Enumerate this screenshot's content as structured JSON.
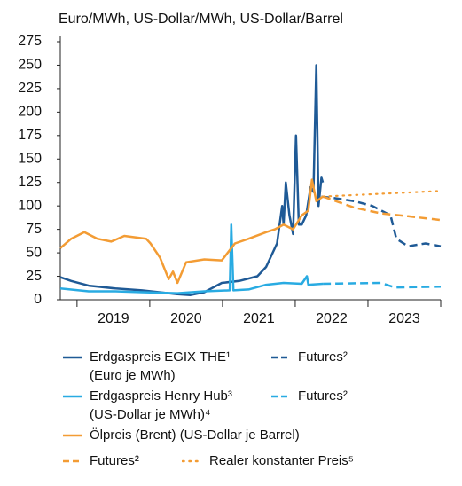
{
  "chart_data": {
    "type": "line",
    "title": "Euro/MWh, US-Dollar/MWh, US-Dollar/Barrel",
    "xlim": [
      2018.77,
      2024.0
    ],
    "xticks": [
      {
        "value": 2019.5,
        "label": "2019"
      },
      {
        "value": 2020.5,
        "label": "2020"
      },
      {
        "value": 2021.5,
        "label": "2021"
      },
      {
        "value": 2022.5,
        "label": "2022"
      },
      {
        "value": 2023.5,
        "label": "2023"
      }
    ],
    "x_minor_ticks": [
      2019,
      2020,
      2021,
      2022,
      2023,
      2024
    ],
    "ylim": [
      0,
      275
    ],
    "yticks": [
      0,
      25,
      50,
      75,
      100,
      125,
      150,
      175,
      200,
      225,
      250,
      275
    ],
    "series": [
      {
        "name": "Erdgaspreis EGIX THE¹ (Euro je MWh)",
        "color": "#1f5a96",
        "style": "solid",
        "x": [
          2018.77,
          2018.92,
          2019.16,
          2019.53,
          2019.89,
          2020.38,
          2020.56,
          2020.75,
          2020.99,
          2021.23,
          2021.48,
          2021.6,
          2021.75,
          2021.82,
          2021.84,
          2021.87,
          2021.92,
          2021.97,
          2022.01,
          2022.05,
          2022.09,
          2022.15,
          2022.21,
          2022.25,
          2022.29,
          2022.32,
          2022.36,
          2022.38
        ],
        "values": [
          24,
          20,
          15,
          12,
          10,
          6,
          5,
          8,
          18,
          20,
          25,
          35,
          60,
          100,
          80,
          125,
          90,
          70,
          175,
          80,
          80,
          90,
          120,
          115,
          250,
          100,
          130,
          125
        ]
      },
      {
        "name": "Futures²",
        "color": "#1f5a96",
        "style": "dashed",
        "x": [
          2022.36,
          2022.57,
          2022.82,
          2023.06,
          2023.31,
          2023.39,
          2023.55,
          2023.79,
          2024.0
        ],
        "values": [
          110,
          108,
          105,
          100,
          90,
          65,
          57,
          60,
          57
        ]
      },
      {
        "name": "Erdgaspreis Henry Hub³ (US-Dollar je MWh)⁴",
        "color": "#29abe2",
        "style": "solid",
        "x": [
          2018.77,
          2019.16,
          2019.53,
          2019.89,
          2020.38,
          2020.75,
          2021.1,
          2021.12,
          2021.15,
          2021.36,
          2021.6,
          2021.84,
          2022.09,
          2022.16,
          2022.18,
          2022.38
        ],
        "values": [
          12,
          9,
          9,
          8,
          7,
          9,
          10,
          80,
          10,
          11,
          16,
          18,
          17,
          25,
          16,
          17
        ]
      },
      {
        "name": "Futures²",
        "color": "#29abe2",
        "style": "dashed",
        "x": [
          2022.38,
          2023.18,
          2023.37,
          2024.0
        ],
        "values": [
          17,
          18,
          13,
          14
        ]
      },
      {
        "name": "Ölpreis (Brent) (US-Dollar je Barrel)",
        "color": "#f39c34",
        "style": "solid",
        "x": [
          2018.77,
          2018.92,
          2019.1,
          2019.28,
          2019.47,
          2019.65,
          2019.95,
          2020.01,
          2020.14,
          2020.26,
          2020.32,
          2020.38,
          2020.5,
          2020.75,
          2020.99,
          2021.17,
          2021.36,
          2021.6,
          2021.72,
          2021.84,
          2021.97,
          2022.09,
          2022.18,
          2022.23,
          2022.29,
          2022.38
        ],
        "values": [
          55,
          65,
          72,
          65,
          62,
          68,
          65,
          60,
          45,
          22,
          30,
          18,
          40,
          43,
          42,
          60,
          65,
          72,
          75,
          80,
          75,
          90,
          95,
          128,
          105,
          110
        ]
      },
      {
        "name": "Futures²",
        "color": "#f39c34",
        "style": "dashed",
        "x": [
          2022.38,
          2022.82,
          2023.18,
          2023.55,
          2024.0
        ],
        "values": [
          110,
          98,
          92,
          89,
          85
        ]
      },
      {
        "name": "Realer konstanter Preis⁵",
        "color": "#f39c34",
        "style": "dotted",
        "x": [
          2022.38,
          2024.0
        ],
        "values": [
          110,
          116
        ]
      }
    ]
  }
}
